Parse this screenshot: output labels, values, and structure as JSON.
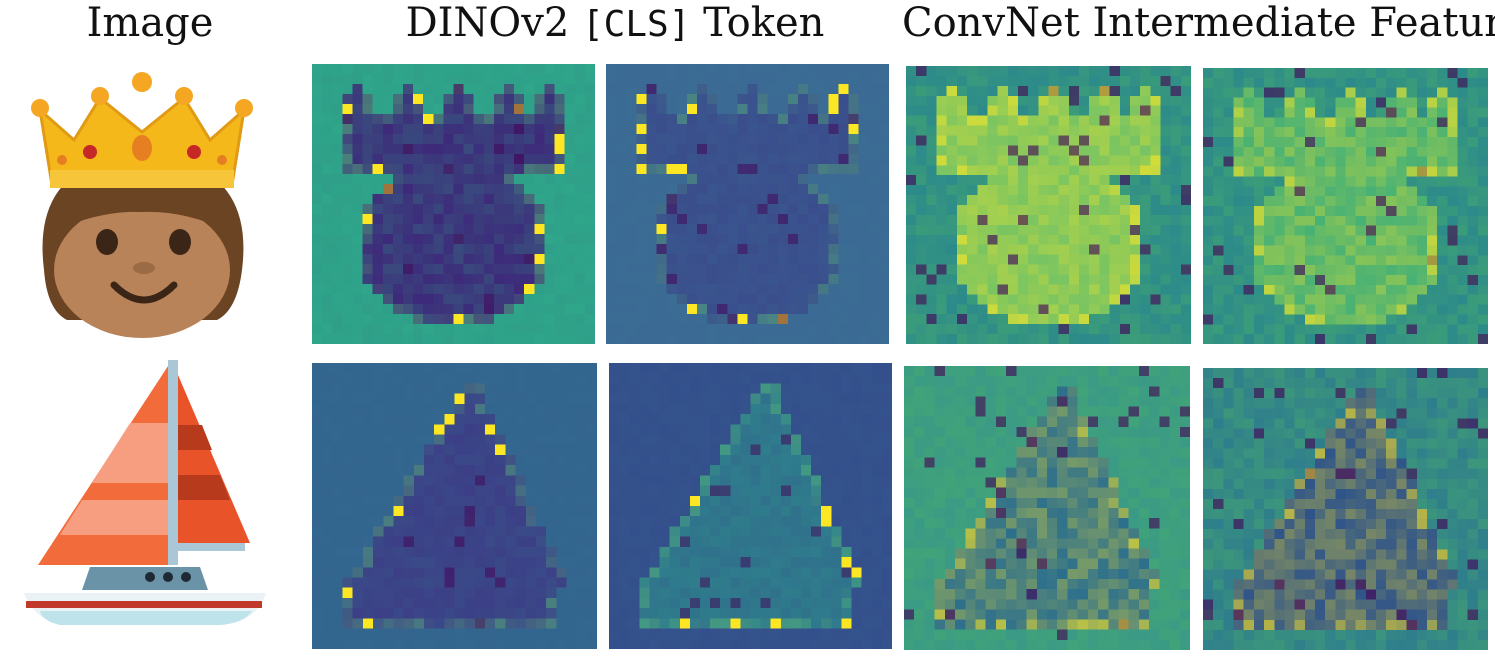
{
  "headers": {
    "image": "Image",
    "dino_prefix": "DINOv2",
    "dino_token": "[CLS]",
    "dino_suffix": "Token",
    "convnet": "ConvNet Intermediate Feature"
  },
  "rows": [
    {
      "image_icon": "crown-child-emoji-icon"
    },
    {
      "image_icon": "sailboat-emoji-icon"
    }
  ],
  "colors": {
    "viridis_low": "#440154",
    "viridis_mid": "#21918c",
    "viridis_high": "#fde725"
  }
}
